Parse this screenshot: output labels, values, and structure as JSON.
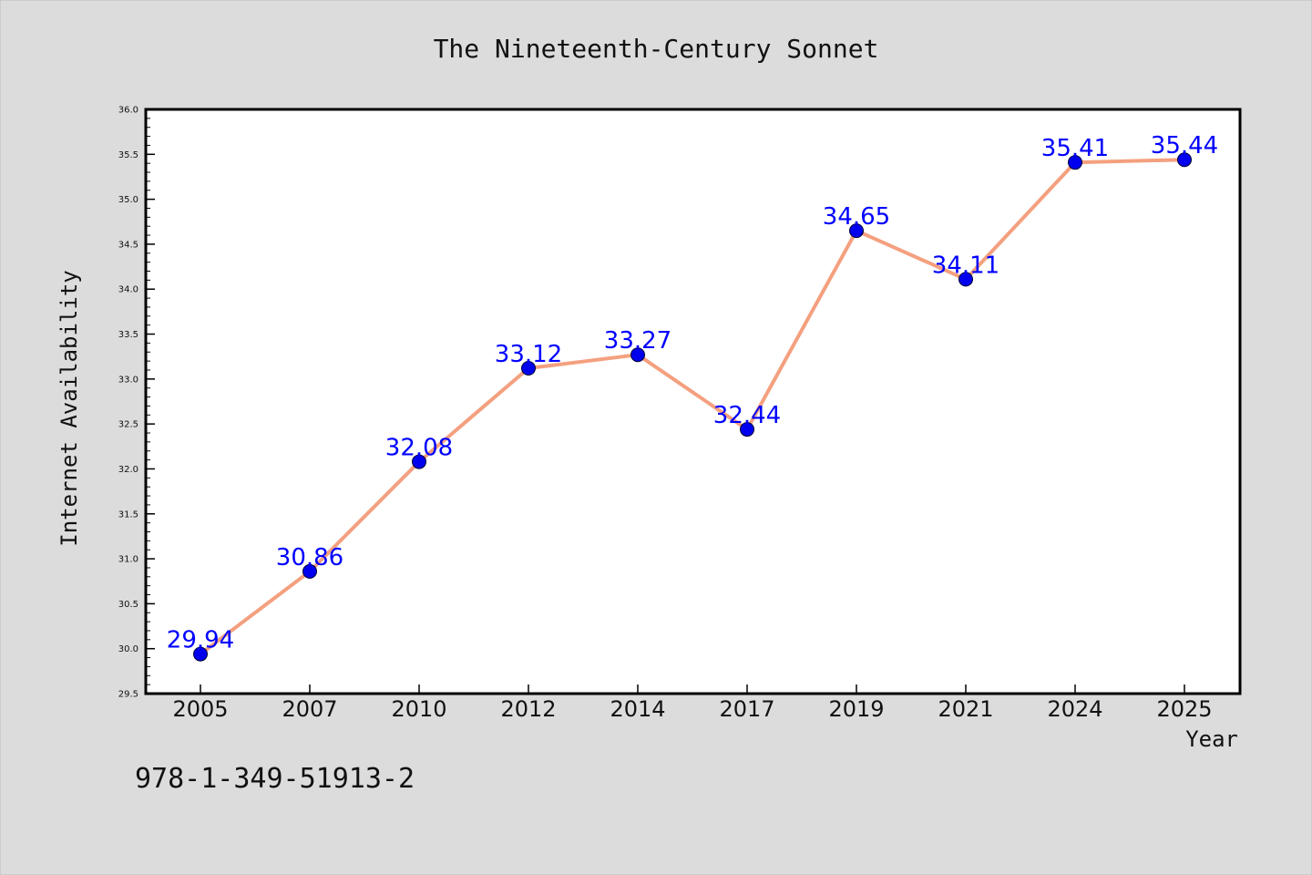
{
  "chart_data": {
    "type": "line",
    "title": "The Nineteenth-Century Sonnet",
    "xlabel": "Year",
    "ylabel": "Internet Availability",
    "categories": [
      "2005",
      "2007",
      "2010",
      "2012",
      "2014",
      "2017",
      "2019",
      "2021",
      "2024",
      "2025"
    ],
    "series": [
      {
        "values": [
          29.94,
          30.86,
          32.08,
          33.12,
          33.27,
          32.44,
          34.65,
          34.11,
          35.41,
          35.44
        ],
        "data_labels": [
          "29.94",
          "30.86",
          "32.08",
          "33.12",
          "33.27",
          "32.44",
          "34.65",
          "34.11",
          "35.41",
          "35.44"
        ]
      }
    ],
    "ylim": [
      29.5,
      36.0
    ],
    "y_ticks": [
      "29.5",
      "30.0",
      "30.5",
      "31.0",
      "31.5",
      "32.0",
      "32.5",
      "33.0",
      "33.5",
      "34.0",
      "34.5",
      "35.0",
      "35.5",
      "36.0"
    ],
    "grid": false,
    "legend": "none",
    "colors": {
      "background": "#dcdcdc",
      "plot_background": "#ffffff",
      "line": "#f4a07f",
      "marker": "#0000ee",
      "data_label": "#0000ff"
    }
  },
  "footer": {
    "isbn": "978-1-349-51913-2"
  }
}
